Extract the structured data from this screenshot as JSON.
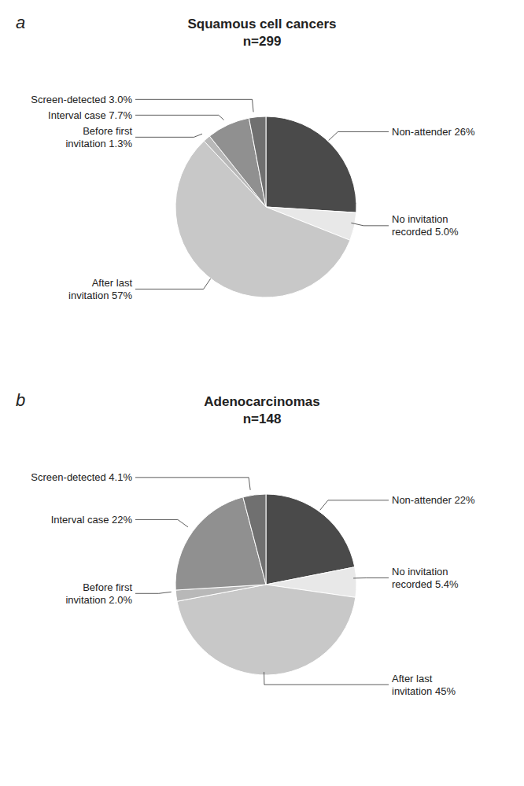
{
  "chart_data": [
    {
      "type": "pie",
      "panel_label": "a",
      "title": "Squamous cell cancers",
      "subtitle": "n=299",
      "categories": [
        "Non-attender 26%",
        "No invitation\nrecorded 5.0%",
        "After last\ninvitation 57%",
        "Before first\ninvitation 1.3%",
        "Interval case 7.7%",
        "Screen-detected 3.0%"
      ],
      "values": [
        26.0,
        5.0,
        57.0,
        1.3,
        7.7,
        3.0
      ],
      "colors": [
        "#4a4a4a",
        "#e8e8e8",
        "#c8c8c8",
        "#b8b8b8",
        "#909090",
        "#707070"
      ]
    },
    {
      "type": "pie",
      "panel_label": "b",
      "title": "Adenocarcinomas",
      "subtitle": "n=148",
      "categories": [
        "Non-attender 22%",
        "No invitation\nrecorded 5.4%",
        "After last\ninvitation 45%",
        "Before first\ninvitation 2.0%",
        "Interval case 22%",
        "Screen-detected 4.1%"
      ],
      "values": [
        22.0,
        5.4,
        45.0,
        2.0,
        22.0,
        4.1
      ],
      "colors": [
        "#4a4a4a",
        "#e8e8e8",
        "#c8c8c8",
        "#b8b8b8",
        "#909090",
        "#707070"
      ]
    }
  ]
}
